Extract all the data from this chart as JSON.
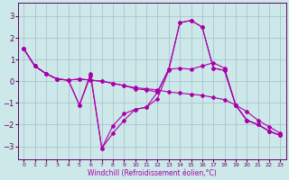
{
  "background_color": "#cce8e8",
  "grid_color": "#aabbcc",
  "line_color": "#aa00aa",
  "xlabel": "Windchill (Refroidissement éolien,°C)",
  "xlim": [
    -0.5,
    23.5
  ],
  "ylim": [
    -3.6,
    3.6
  ],
  "yticks": [
    -3,
    -2,
    -1,
    0,
    1,
    2,
    3
  ],
  "xticks": [
    0,
    1,
    2,
    3,
    4,
    5,
    6,
    7,
    8,
    9,
    10,
    11,
    12,
    13,
    14,
    15,
    16,
    17,
    18,
    19,
    20,
    21,
    22,
    23
  ],
  "series": [
    {
      "x": [
        0,
        1,
        2,
        3,
        4,
        5,
        6,
        7,
        8,
        9,
        10,
        11,
        12,
        13,
        14,
        15,
        16,
        17,
        18,
        19,
        20,
        21,
        22,
        23
      ],
      "y": [
        1.5,
        0.7,
        0.35,
        0.1,
        0.05,
        0.1,
        0.05,
        0.0,
        -0.1,
        -0.2,
        -0.3,
        -0.35,
        -0.4,
        -0.5,
        -0.55,
        -0.6,
        -0.65,
        -0.75,
        -0.85,
        -1.1,
        -1.4,
        -1.8,
        -2.1,
        -2.4
      ]
    },
    {
      "x": [
        0,
        1,
        2,
        3,
        4,
        5,
        6,
        7,
        8,
        9,
        10,
        11,
        12,
        13,
        14,
        15,
        16,
        17,
        18,
        19,
        20,
        21,
        22,
        23
      ],
      "y": [
        1.5,
        0.7,
        0.35,
        0.1,
        0.05,
        -1.1,
        0.25,
        -3.1,
        -2.4,
        -1.8,
        -1.3,
        -1.2,
        -0.8,
        0.5,
        2.7,
        2.8,
        2.5,
        0.6,
        0.5,
        -1.1,
        -1.8,
        -2.0,
        -2.3,
        -2.5
      ]
    },
    {
      "x": [
        0,
        1,
        2,
        3,
        4,
        5,
        6,
        7,
        8,
        9,
        10,
        11,
        12,
        13,
        14,
        15,
        16,
        17,
        18,
        19,
        20,
        21,
        22,
        23
      ],
      "y": [
        1.5,
        0.7,
        0.35,
        0.1,
        0.05,
        -1.1,
        0.35,
        -3.1,
        -2.05,
        -1.5,
        -1.3,
        -1.2,
        -0.5,
        0.55,
        2.7,
        2.8,
        2.5,
        0.6,
        0.5,
        -1.1,
        -1.8,
        -2.0,
        -2.3,
        -2.5
      ]
    },
    {
      "x": [
        0,
        1,
        2,
        3,
        4,
        5,
        6,
        7,
        8,
        9,
        10,
        11,
        12,
        13,
        14,
        15,
        16,
        17,
        18,
        19,
        20,
        21,
        22,
        23
      ],
      "y": [
        1.5,
        0.7,
        0.35,
        0.1,
        0.05,
        0.1,
        0.05,
        0.0,
        -0.1,
        -0.2,
        -0.35,
        -0.4,
        -0.5,
        0.55,
        0.6,
        0.55,
        0.7,
        0.85,
        0.6,
        -1.1,
        -1.8,
        -2.0,
        -2.3,
        -2.5
      ]
    }
  ]
}
